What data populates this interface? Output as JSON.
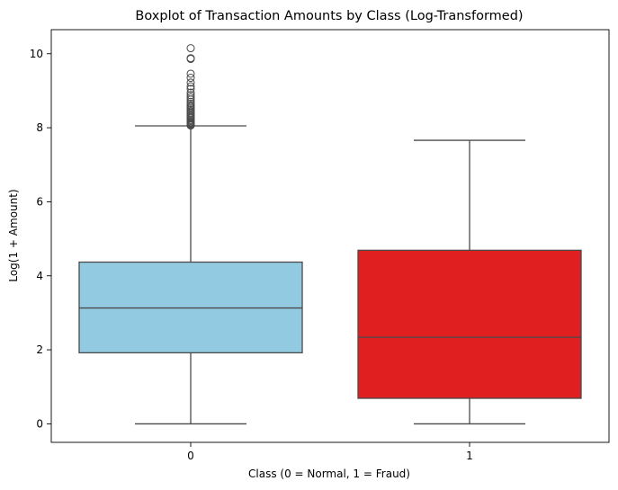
{
  "chart_data": {
    "type": "boxplot",
    "title": "Boxplot of Transaction Amounts by Class (Log-Transformed)",
    "xlabel": "Class (0 = Normal, 1 = Fraud)",
    "ylabel": "Log(1 + Amount)",
    "categories": [
      "0",
      "1"
    ],
    "ylim": [
      -0.5,
      10.65
    ],
    "yticks": [
      0,
      2,
      4,
      6,
      8,
      10
    ],
    "grid": false,
    "boxes": [
      {
        "category": "0",
        "color": "#92cae1",
        "whisker_low": 0.0,
        "q1": 1.92,
        "median": 3.13,
        "q3": 4.37,
        "whisker_high": 8.05,
        "outliers": [
          8.06,
          8.08,
          8.1,
          8.12,
          8.15,
          8.18,
          8.21,
          8.25,
          8.28,
          8.32,
          8.36,
          8.4,
          8.44,
          8.48,
          8.52,
          8.56,
          8.6,
          8.65,
          8.7,
          8.76,
          8.82,
          8.88,
          8.95,
          9.05,
          9.12,
          9.22,
          9.35,
          9.46,
          9.86,
          9.88,
          10.15
        ]
      },
      {
        "category": "1",
        "color": "#e01f21",
        "whisker_low": 0.0,
        "q1": 0.69,
        "median": 2.34,
        "q3": 4.69,
        "whisker_high": 7.66,
        "outliers": []
      }
    ]
  }
}
